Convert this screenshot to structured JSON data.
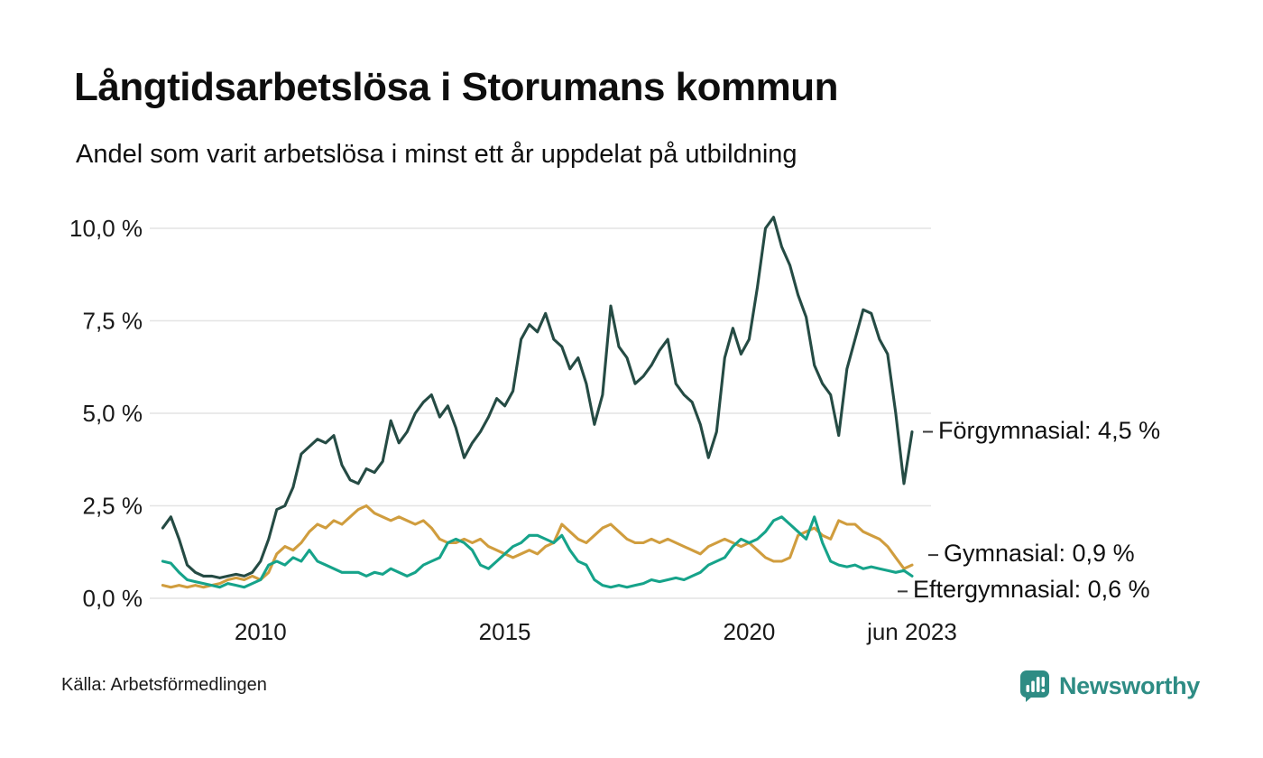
{
  "header": {
    "title": "Långtidsarbetslösa i Storumans kommun",
    "subtitle": "Andel som varit arbetslösa i minst ett år uppdelat på utbildning"
  },
  "footer": {
    "source": "Källa: Arbetsförmedlingen",
    "brand": "Newsworthy",
    "brand_color": "#2e8c84"
  },
  "chart_data": {
    "type": "line",
    "title": "Långtidsarbetslösa i Storumans kommun",
    "subtitle": "Andel som varit arbetslösa i minst ett år uppdelat på utbildning",
    "grid": true,
    "legend_position": "right-annotations",
    "x_start": 2008.0,
    "x_step": 0.16667,
    "xlim": [
      2007.9,
      2023.5
    ],
    "ylim": [
      0,
      10
    ],
    "grid_color": "#e4e4e4",
    "axis_text_color": "#191919",
    "x_ticks": [
      {
        "value": 2010,
        "label": "2010"
      },
      {
        "value": 2015,
        "label": "2015"
      },
      {
        "value": 2020,
        "label": "2020"
      },
      {
        "value": 2023.333,
        "label": "jun 2023"
      }
    ],
    "y_ticks": [
      {
        "value": 0,
        "label": "0,0 %"
      },
      {
        "value": 2.5,
        "label": "2,5 %"
      },
      {
        "value": 5,
        "label": "5,0 %"
      },
      {
        "value": 7.5,
        "label": "7,5 %"
      },
      {
        "value": 10,
        "label": "10,0 %"
      }
    ],
    "series": [
      {
        "name": "Förgymnasial",
        "color": "#254b44",
        "end_label": "Förgymnasial: 4,5 %",
        "end_value": 4.5,
        "values": [
          1.9,
          2.2,
          1.6,
          0.9,
          0.7,
          0.6,
          0.6,
          0.55,
          0.6,
          0.65,
          0.6,
          0.7,
          1.0,
          1.6,
          2.4,
          2.5,
          3.0,
          3.9,
          4.1,
          4.3,
          4.2,
          4.4,
          3.6,
          3.2,
          3.1,
          3.5,
          3.4,
          3.7,
          4.8,
          4.2,
          4.5,
          5.0,
          5.3,
          5.5,
          4.9,
          5.2,
          4.6,
          3.8,
          4.2,
          4.5,
          4.9,
          5.4,
          5.2,
          5.6,
          7.0,
          7.4,
          7.2,
          7.7,
          7.0,
          6.8,
          6.2,
          6.5,
          5.8,
          4.7,
          5.5,
          7.9,
          6.8,
          6.5,
          5.8,
          6.0,
          6.3,
          6.7,
          7.0,
          5.8,
          5.5,
          5.3,
          4.7,
          3.8,
          4.5,
          6.5,
          7.3,
          6.6,
          7.0,
          8.4,
          10.0,
          10.3,
          9.5,
          9.0,
          8.2,
          7.6,
          6.3,
          5.8,
          5.5,
          4.4,
          6.2,
          7.0,
          7.8,
          7.7,
          7.0,
          6.6,
          5.0,
          3.1,
          4.5
        ]
      },
      {
        "name": "Gymnasial",
        "color": "#d09d3e",
        "end_label": "Gymnasial: 0,9 %",
        "end_value": 0.9,
        "values": [
          0.35,
          0.3,
          0.35,
          0.3,
          0.35,
          0.3,
          0.35,
          0.4,
          0.5,
          0.55,
          0.5,
          0.6,
          0.5,
          0.7,
          1.2,
          1.4,
          1.3,
          1.5,
          1.8,
          2.0,
          1.9,
          2.1,
          2.0,
          2.2,
          2.4,
          2.5,
          2.3,
          2.2,
          2.1,
          2.2,
          2.1,
          2.0,
          2.1,
          1.9,
          1.6,
          1.5,
          1.5,
          1.6,
          1.5,
          1.6,
          1.4,
          1.3,
          1.2,
          1.1,
          1.2,
          1.3,
          1.2,
          1.4,
          1.5,
          2.0,
          1.8,
          1.6,
          1.5,
          1.7,
          1.9,
          2.0,
          1.8,
          1.6,
          1.5,
          1.5,
          1.6,
          1.5,
          1.6,
          1.5,
          1.4,
          1.3,
          1.2,
          1.4,
          1.5,
          1.6,
          1.5,
          1.4,
          1.5,
          1.3,
          1.1,
          1.0,
          1.0,
          1.1,
          1.7,
          1.8,
          1.9,
          1.7,
          1.6,
          2.1,
          2.0,
          2.0,
          1.8,
          1.7,
          1.6,
          1.4,
          1.1,
          0.8,
          0.9
        ]
      },
      {
        "name": "Eftergymnasial",
        "color": "#16a38a",
        "end_label": "Eftergymnasial: 0,6 %",
        "end_value": 0.6,
        "values": [
          1.0,
          0.95,
          0.7,
          0.5,
          0.45,
          0.4,
          0.35,
          0.3,
          0.4,
          0.35,
          0.3,
          0.4,
          0.5,
          0.9,
          1.0,
          0.9,
          1.1,
          1.0,
          1.3,
          1.0,
          0.9,
          0.8,
          0.7,
          0.7,
          0.7,
          0.6,
          0.7,
          0.65,
          0.8,
          0.7,
          0.6,
          0.7,
          0.9,
          1.0,
          1.1,
          1.5,
          1.6,
          1.5,
          1.3,
          0.9,
          0.8,
          1.0,
          1.2,
          1.4,
          1.5,
          1.7,
          1.7,
          1.6,
          1.5,
          1.7,
          1.3,
          1.0,
          0.9,
          0.5,
          0.35,
          0.3,
          0.35,
          0.3,
          0.35,
          0.4,
          0.5,
          0.45,
          0.5,
          0.55,
          0.5,
          0.6,
          0.7,
          0.9,
          1.0,
          1.1,
          1.4,
          1.6,
          1.5,
          1.6,
          1.8,
          2.1,
          2.2,
          2.0,
          1.8,
          1.6,
          2.2,
          1.5,
          1.0,
          0.9,
          0.85,
          0.9,
          0.8,
          0.85,
          0.8,
          0.75,
          0.7,
          0.75,
          0.6
        ]
      }
    ]
  }
}
